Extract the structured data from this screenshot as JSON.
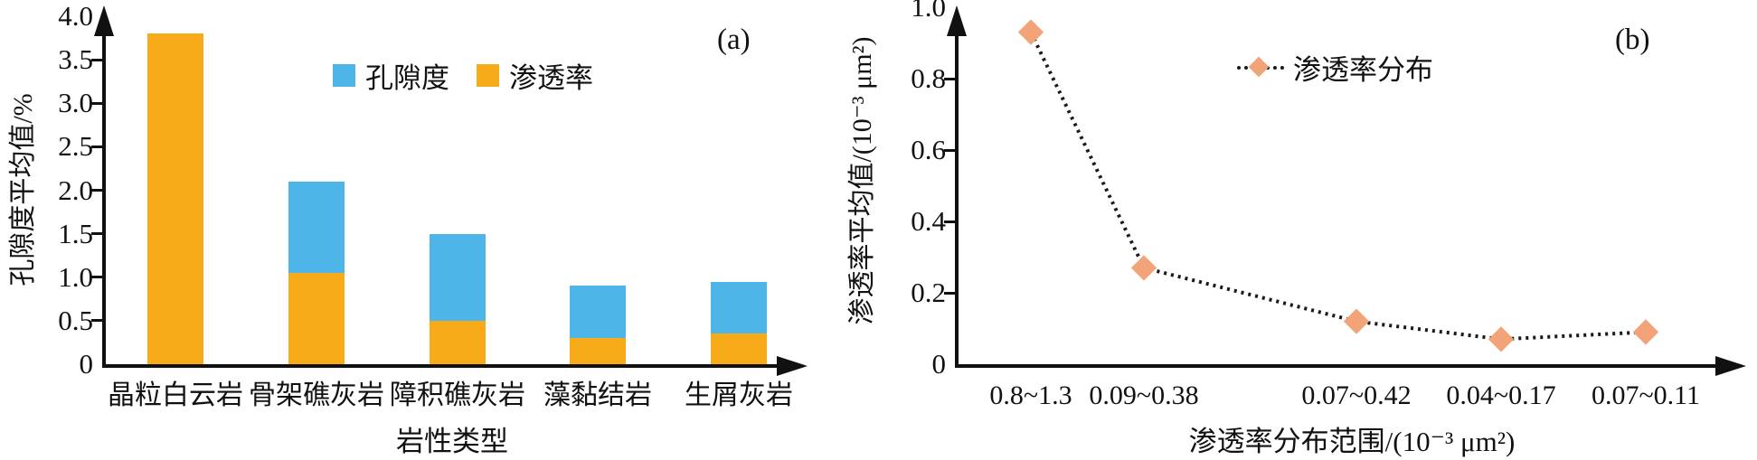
{
  "page": {
    "background": "#ffffff",
    "axis_color": "#111111"
  },
  "chart_data": [
    {
      "type": "bar",
      "panel_label": "(a)",
      "stacked": true,
      "categories": [
        "晶粒白云岩",
        "骨架礁灰岩",
        "障积礁灰岩",
        "藻黏结岩",
        "生屑灰岩"
      ],
      "series": [
        {
          "name": "渗透率",
          "color": "#F8AB18",
          "values": [
            3.8,
            1.05,
            0.5,
            0.3,
            0.35
          ]
        },
        {
          "name": "孔隙度",
          "color": "#4DB5E7",
          "values": [
            0,
            1.05,
            1.0,
            0.6,
            0.6
          ]
        }
      ],
      "stack_totals": [
        3.8,
        2.1,
        1.5,
        0.9,
        0.95
      ],
      "xlabel": "岩性类型",
      "ylabel": "孔隙度平均值/%",
      "ylim": [
        0,
        4.0
      ],
      "ytick_step": 0.5,
      "yticks": [
        "0",
        "0.5",
        "1.0",
        "1.5",
        "2.0",
        "2.5",
        "3.0",
        "3.5",
        "4.0"
      ],
      "grid": false,
      "legend_position": "top-center",
      "legend_order": [
        "孔隙度",
        "渗透率"
      ]
    },
    {
      "type": "line",
      "panel_label": "(b)",
      "categories": [
        "0.8~1.3",
        "0.09~0.38",
        "0.07~0.42",
        "0.04~0.17",
        "0.07~0.11"
      ],
      "series": [
        {
          "name": "渗透率分布",
          "marker": "diamond",
          "marker_color": "#F2A478",
          "line_color": "#1a1a1a",
          "line_style": "dotted",
          "values": [
            0.93,
            0.27,
            0.12,
            0.07,
            0.09
          ]
        }
      ],
      "xlabel": "渗透率分布范围/(10⁻³ μm²)",
      "ylabel": "渗透率平均值/(10⁻³ μm²)",
      "ylim": [
        0,
        1.0
      ],
      "ytick_step": 0.2,
      "yticks": [
        "0",
        "0.2",
        "0.4",
        "0.6",
        "0.8",
        "1.0"
      ],
      "grid": false,
      "legend_position": "top-center"
    }
  ]
}
